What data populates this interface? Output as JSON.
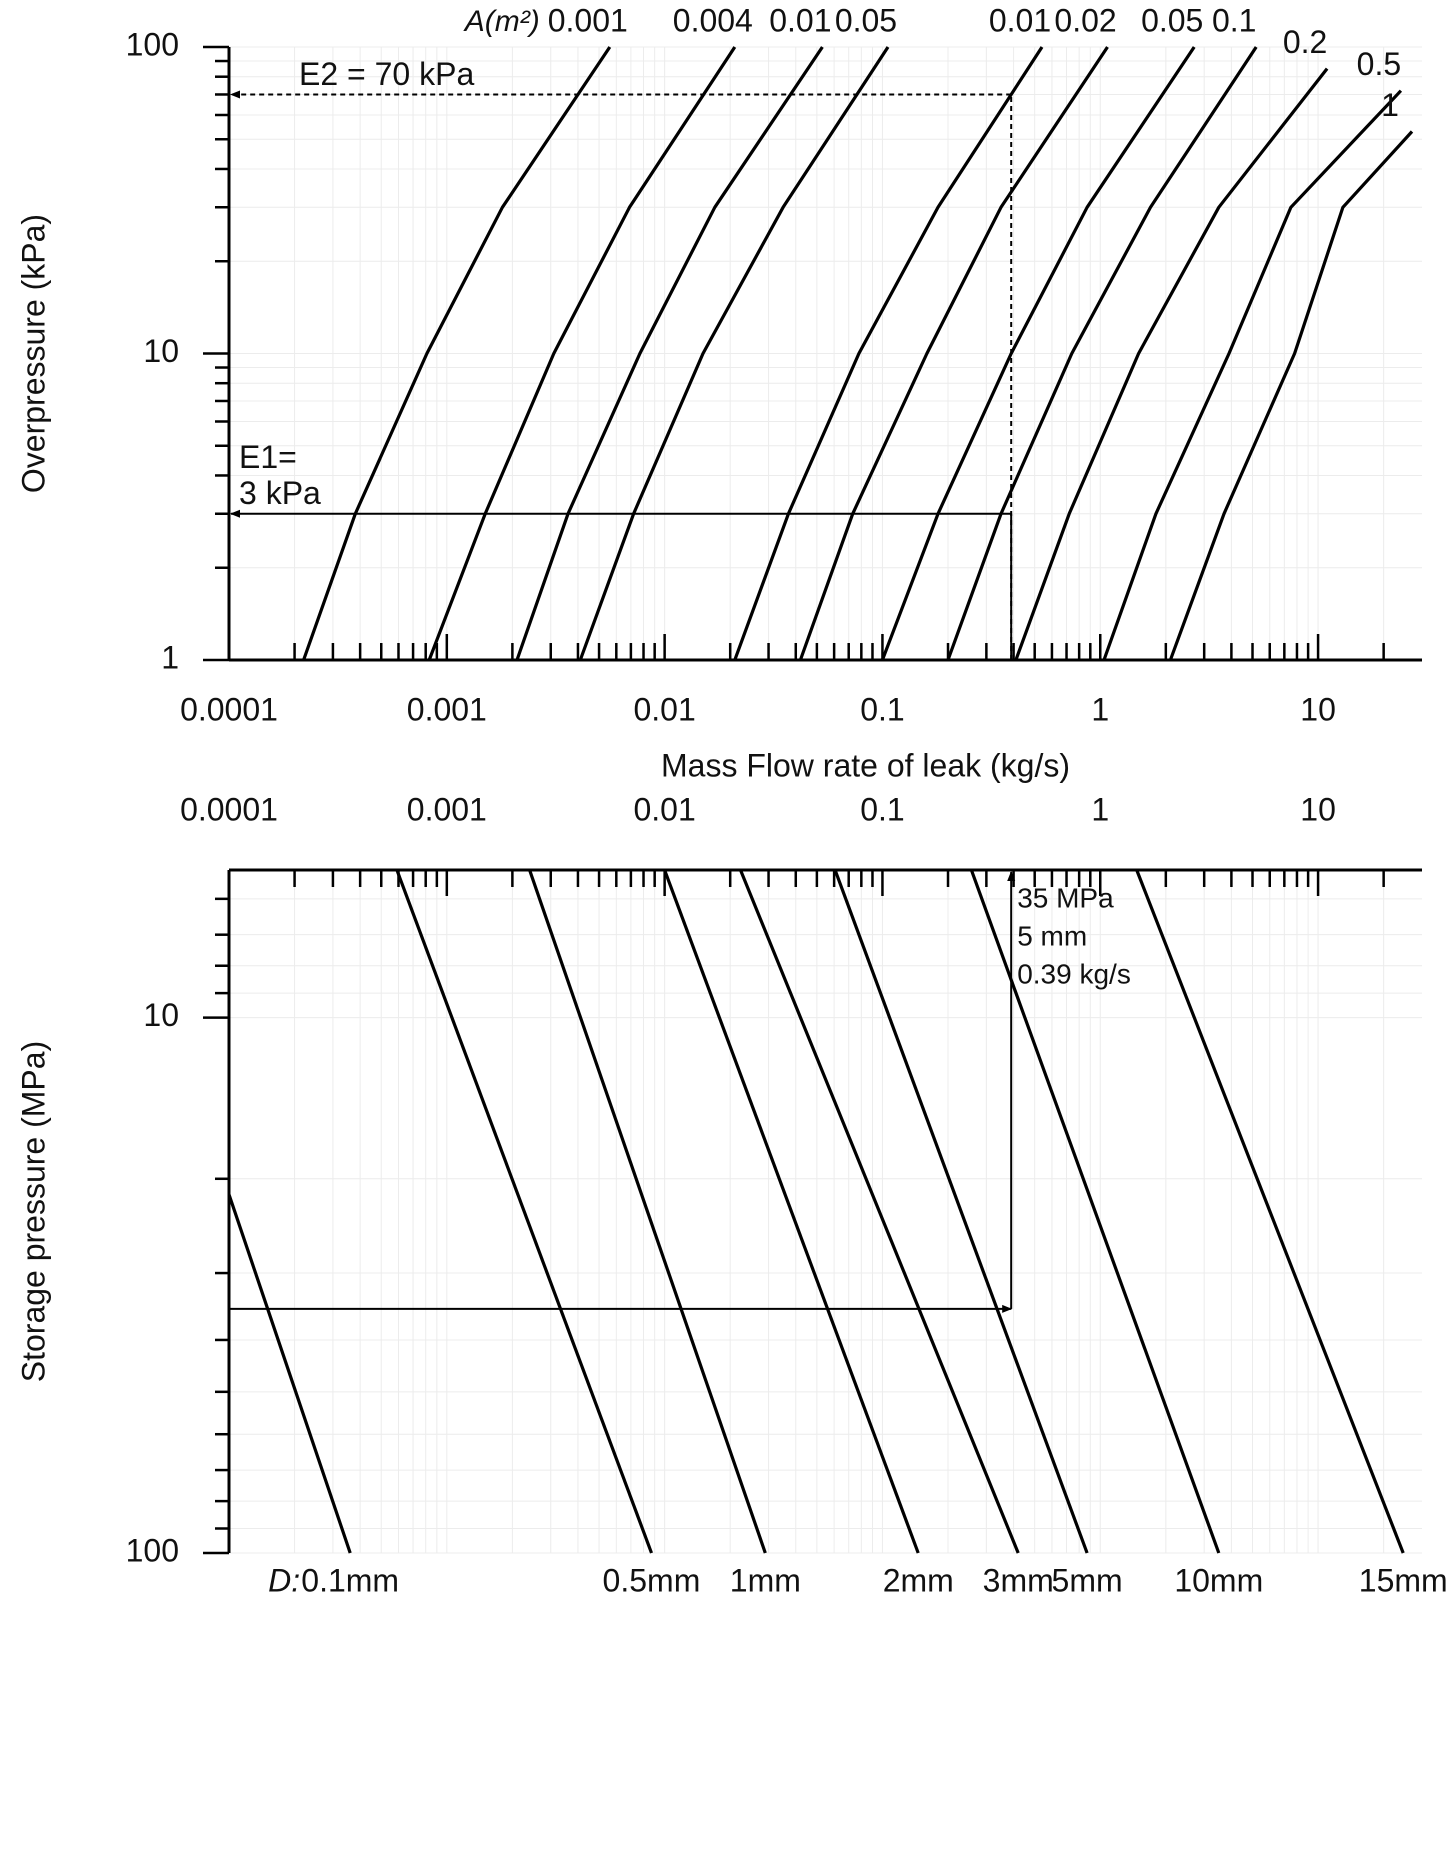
{
  "chart_data": [
    {
      "type": "line",
      "x_label": "Mass Flow rate of leak (kg/s)",
      "y_label": "Overpressure (kPa)",
      "series_label": "A(m²)",
      "x_log": true,
      "y_log": true,
      "grid": true,
      "xlim": [
        0.0001,
        30
      ],
      "ylim": [
        1,
        100
      ],
      "xticks": [
        0.0001,
        0.001,
        0.01,
        0.1,
        1,
        10
      ],
      "xticks_minor": [
        0.0002,
        0.0003,
        0.0004,
        0.0005,
        0.0006,
        0.0007,
        0.0008,
        0.0009,
        0.002,
        0.003,
        0.004,
        0.005,
        0.006,
        0.007,
        0.008,
        0.009,
        0.02,
        0.03,
        0.04,
        0.05,
        0.06,
        0.07,
        0.08,
        0.09,
        0.2,
        0.3,
        0.4,
        0.5,
        0.6,
        0.7,
        0.8,
        0.9,
        2,
        3,
        4,
        5,
        6,
        7,
        8,
        9,
        20
      ],
      "yticks": [
        1,
        10,
        100
      ],
      "yticks_minor": [
        2,
        3,
        4,
        5,
        6,
        7,
        8,
        9,
        20,
        30,
        40,
        50,
        60,
        70,
        80,
        90
      ],
      "series": [
        {
          "name": "0.001",
          "color": "#000000",
          "x": [
            0.00022,
            0.00038,
            0.00081,
            0.0018,
            0.0056
          ],
          "values": [
            1,
            3,
            10,
            30,
            100
          ]
        },
        {
          "name": "0.004",
          "color": "#000000",
          "x": [
            0.00083,
            0.0015,
            0.0031,
            0.0069,
            0.021
          ],
          "values": [
            1,
            3,
            10,
            30,
            100
          ]
        },
        {
          "name": "0.01",
          "color": "#000000",
          "x": [
            0.0021,
            0.0036,
            0.0077,
            0.017,
            0.053
          ],
          "values": [
            1,
            3,
            10,
            30,
            100
          ]
        },
        {
          "name": "0.05",
          "color": "#000000",
          "x": [
            0.0041,
            0.0072,
            0.015,
            0.035,
            0.106
          ],
          "values": [
            1,
            3,
            10,
            30,
            100
          ]
        },
        {
          "name": "0.01",
          "color": "#000000",
          "x": [
            0.021,
            0.037,
            0.078,
            0.18,
            0.54
          ],
          "values": [
            1,
            3,
            10,
            30,
            100
          ]
        },
        {
          "name": "0.02",
          "color": "#000000",
          "x": [
            0.042,
            0.073,
            0.16,
            0.35,
            1.08
          ],
          "values": [
            1,
            3,
            10,
            30,
            100
          ]
        },
        {
          "name": "0.05",
          "color": "#000000",
          "x": [
            0.1,
            0.18,
            0.39,
            0.87,
            2.7
          ],
          "values": [
            1,
            3,
            10,
            30,
            100
          ]
        },
        {
          "name": "0.1",
          "color": "#000000",
          "x": [
            0.2,
            0.35,
            0.74,
            1.7,
            5.2
          ],
          "values": [
            1,
            3,
            10,
            30,
            100
          ]
        },
        {
          "name": "0.2",
          "color": "#000000",
          "x": [
            0.41,
            0.72,
            1.5,
            3.5,
            11
          ],
          "values": [
            1,
            3,
            10,
            30,
            85
          ]
        },
        {
          "name": "0.5",
          "color": "#000000",
          "x": [
            1.04,
            1.8,
            3.9,
            7.5,
            24
          ],
          "values": [
            1,
            3,
            10,
            30,
            72
          ]
        },
        {
          "name": "1",
          "color": "#000000",
          "x": [
            2.1,
            3.7,
            7.8,
            13,
            27
          ],
          "values": [
            1,
            3,
            10,
            30,
            53
          ]
        }
      ],
      "guides": [
        {
          "text": [
            "E2 = 70 kPa"
          ],
          "x": 0.39,
          "y": 70,
          "style": "dashed"
        },
        {
          "text": [
            "E1=",
            "3 kPa"
          ],
          "x": 0.39,
          "y": 3,
          "style": "solid"
        }
      ]
    },
    {
      "type": "line",
      "y_label": "Storage pressure (MPa)",
      "series_label": "D:",
      "x_log": true,
      "y_log": true,
      "y_inverted": true,
      "grid": true,
      "xlim": [
        0.0001,
        30
      ],
      "ylim": [
        5.3,
        100
      ],
      "xticks": [
        0.0001,
        0.001,
        0.01,
        0.1,
        1,
        10
      ],
      "xticks_minor": [
        0.0002,
        0.0003,
        0.0004,
        0.0005,
        0.0006,
        0.0007,
        0.0008,
        0.0009,
        0.002,
        0.003,
        0.004,
        0.005,
        0.006,
        0.007,
        0.008,
        0.009,
        0.02,
        0.03,
        0.04,
        0.05,
        0.06,
        0.07,
        0.08,
        0.09,
        0.2,
        0.3,
        0.4,
        0.5,
        0.6,
        0.7,
        0.8,
        0.9,
        2,
        3,
        4,
        5,
        6,
        7,
        8,
        9,
        20
      ],
      "yticks": [
        10,
        100
      ],
      "yticks_minor": [
        6,
        7,
        8,
        9,
        20,
        30,
        40,
        50,
        60,
        70,
        80,
        90
      ],
      "series": [
        {
          "name": "0.1mm",
          "color": "#000000",
          "x": [
            0.0001,
            0.00036
          ],
          "values": [
            21.4,
            100
          ]
        },
        {
          "name": "0.5mm",
          "color": "#000000",
          "x": [
            0.00059,
            0.0087
          ],
          "values": [
            5.3,
            100
          ]
        },
        {
          "name": "1mm",
          "color": "#000000",
          "x": [
            0.0024,
            0.029
          ],
          "values": [
            5.3,
            100
          ]
        },
        {
          "name": "2mm",
          "color": "#000000",
          "x": [
            0.01,
            0.146
          ],
          "values": [
            5.3,
            100
          ]
        },
        {
          "name": "3mm",
          "color": "#000000",
          "x": [
            0.0223,
            0.42
          ],
          "values": [
            5.3,
            100
          ]
        },
        {
          "name": "5mm",
          "color": "#000000",
          "x": [
            0.0606,
            0.87
          ],
          "values": [
            5.3,
            100
          ]
        },
        {
          "name": "10mm",
          "color": "#000000",
          "x": [
            0.256,
            3.5
          ],
          "values": [
            5.3,
            100
          ]
        },
        {
          "name": "15mm",
          "color": "#000000",
          "x": [
            1.47,
            24.6
          ],
          "values": [
            5.3,
            100
          ]
        }
      ],
      "guides": [
        {
          "text": [
            "35 MPa",
            "5 mm",
            "0.39 kg/s"
          ],
          "x": 0.39,
          "y": 35,
          "style": "solid"
        }
      ]
    }
  ]
}
